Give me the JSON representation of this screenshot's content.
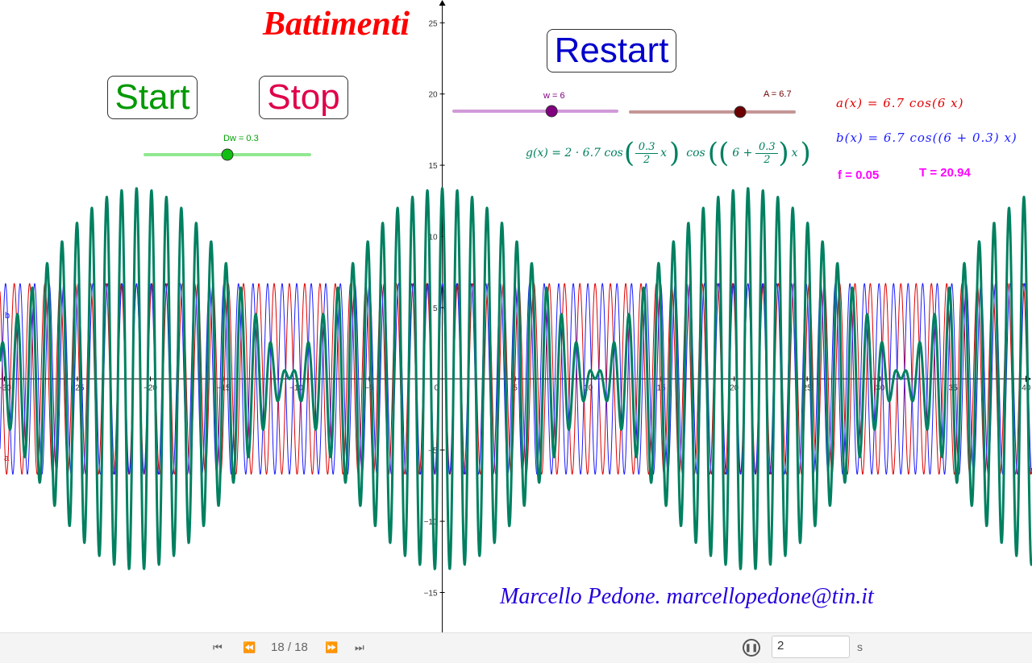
{
  "title": "Battimenti",
  "buttons": {
    "start": "Start",
    "stop": "Stop",
    "restart": "Restart"
  },
  "sliders": {
    "dw": {
      "label": "Dw = 0.3",
      "value": 0.3,
      "min": 0,
      "max": 0.6
    },
    "w": {
      "label": "w = 6",
      "value": 6,
      "min": 0,
      "max": 10
    },
    "A": {
      "label": "A = 6.7",
      "value": 6.7,
      "min": 0,
      "max": 10
    }
  },
  "formulas": {
    "a": "a(x) = 6.7 cos(6 x)",
    "b": "b(x) = 6.7 cos((6 + 0.3) x)",
    "g_prefix": "g(x) = 2 · 6.7 cos",
    "g_frac_num": "0.3",
    "g_frac_den": "2",
    "g_mid": "cos",
    "g_inner": "6 +",
    "g_x": "x"
  },
  "stats": {
    "f": "f = 0.05",
    "T": "T = 20.94"
  },
  "author": "Marcello Pedone. marcellopedone@tin.it",
  "curve_labels": {
    "a": "a",
    "b": "b"
  },
  "footer": {
    "page": "18 / 18",
    "speed": "2",
    "unit": "s"
  },
  "colors": {
    "a": "#e00000",
    "b": "#1a1aff",
    "g": "#008060",
    "title": "#ff0000",
    "start": "#009900",
    "stop": "#e0004a",
    "restart": "#0000cc",
    "author": "#2200dd",
    "stats": "#ff00ff"
  },
  "chart_data": {
    "type": "line",
    "x_ticks": [
      -30,
      -25,
      -20,
      -15,
      -10,
      -5,
      0,
      5,
      10,
      15,
      20,
      25,
      30,
      35,
      40
    ],
    "y_ticks": [
      -15,
      -10,
      -5,
      5,
      10,
      15,
      20,
      25
    ],
    "xlim": [
      -30.3,
      40.4
    ],
    "ylim": [
      -17.8,
      26.6
    ],
    "series": [
      {
        "name": "a",
        "function": "6.7 cos(6 x)",
        "A": 6.7,
        "w": 6
      },
      {
        "name": "b",
        "function": "6.7 cos((6 + 0.3) x)",
        "A": 6.7,
        "w": 6.3
      },
      {
        "name": "g",
        "function": "2 · 6.7 cos(0.3/2 x) cos((6 + 0.3/2) x)",
        "A": 6.7,
        "w": 6,
        "dw": 0.3
      }
    ]
  }
}
